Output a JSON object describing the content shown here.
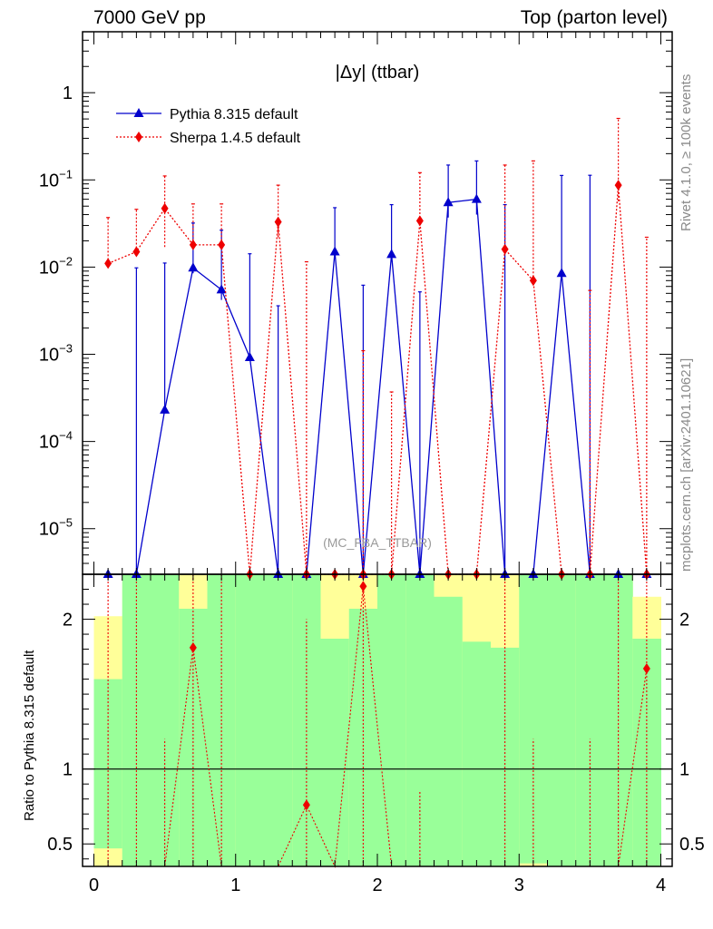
{
  "header": {
    "left": "7000 GeV pp",
    "right": "Top (parton level)"
  },
  "side_labels": {
    "rivet": "Rivet 4.1.0, ≥ 100k events",
    "mcplots": "mcplots.cern.ch [arXiv:2401.10621]"
  },
  "colors": {
    "pythia": "#0000cc",
    "sherpa": "#ee0000",
    "band_green": "#99ff99",
    "band_yellow": "#ffff99"
  },
  "chart_data": [
    {
      "type": "line",
      "panel": "main",
      "title": "|Δy| (ttbar)",
      "watermark": "(MC_FBA_TTBAR)",
      "yscale": "log",
      "xlim": [
        -0.08,
        4.08
      ],
      "ylim": [
        3e-06,
        5
      ],
      "yticks": [
        {
          "value": 1e-05,
          "base": "10",
          "exp": "−5"
        },
        {
          "value": 0.0001,
          "base": "10",
          "exp": "−4"
        },
        {
          "value": 0.001,
          "base": "10",
          "exp": "−3"
        },
        {
          "value": 0.01,
          "base": "10",
          "exp": "−2"
        },
        {
          "value": 0.1,
          "base": "10",
          "exp": "−1"
        },
        {
          "value": 1,
          "base": "1",
          "exp": ""
        }
      ],
      "legend_position": "top-left",
      "series": [
        {
          "name": "Pythia 8.315 default",
          "style": "solid",
          "marker": "triangle",
          "x": [
            0.1,
            0.3,
            0.5,
            0.7,
            0.9,
            1.1,
            1.3,
            1.5,
            1.7,
            1.9,
            2.1,
            2.3,
            2.5,
            2.7,
            2.9,
            3.1,
            3.3,
            3.5,
            3.7,
            3.9
          ],
          "y": [
            0,
            0,
            0.00023,
            0.0098,
            0.0055,
            0.00092,
            0,
            0,
            0.015,
            0,
            0.014,
            0,
            0.055,
            0.06,
            0,
            0,
            0.0085,
            0,
            0,
            0
          ],
          "yerr_up": [
            0,
            0.0098,
            0.0109,
            0.0222,
            0.021,
            0.0133,
            0.0036,
            0,
            0.033,
            0.0062,
            0.038,
            0.0052,
            0.093,
            0.105,
            0.052,
            0,
            0.104,
            0.113,
            0,
            0
          ],
          "yerr_down": [
            0,
            0,
            0,
            0.0013,
            0.0013,
            0,
            0,
            0,
            0.002,
            0,
            0.002,
            0,
            0.018,
            0.02,
            0,
            0,
            0,
            0,
            0,
            0
          ]
        },
        {
          "name": "Sherpa 1.4.5 default",
          "style": "dotted",
          "marker": "diamond",
          "x": [
            0.1,
            0.3,
            0.5,
            0.7,
            0.9,
            1.1,
            1.3,
            1.5,
            1.7,
            1.9,
            2.1,
            2.3,
            2.5,
            2.7,
            2.9,
            3.1,
            3.3,
            3.5,
            3.7,
            3.9
          ],
          "y": [
            0.011,
            0.015,
            0.047,
            0.018,
            0.018,
            0,
            0.033,
            0,
            0,
            0,
            0,
            0.034,
            0,
            0,
            0.016,
            0.007,
            0,
            0,
            0.087,
            0
          ],
          "yerr_up": [
            0.026,
            0.031,
            0.064,
            0.035,
            0.035,
            0,
            0.054,
            0.0115,
            0,
            0.0011,
            0.00037,
            0.087,
            0,
            0,
            0.132,
            0.158,
            0,
            0.0054,
            0.42,
            0.022
          ],
          "yerr_down": [
            0,
            0,
            0.03,
            0.0014,
            0.0014,
            0,
            0.011,
            0,
            0,
            0,
            0,
            0.0005,
            0,
            0,
            0.0004,
            0,
            0,
            0,
            0.03,
            0
          ]
        }
      ]
    },
    {
      "type": "line",
      "panel": "ratio",
      "ylabel": "Ratio to Pythia 8.315 default",
      "xlabel": "",
      "xlim": [
        -0.08,
        4.08
      ],
      "ylim": [
        0.35,
        2.3
      ],
      "xticks": [
        0,
        1,
        2,
        3,
        4
      ],
      "yticks": [
        0.5,
        1,
        2
      ],
      "reference_line": 1,
      "bands": {
        "edges": [
          0.0,
          0.2,
          0.4,
          0.6,
          0.8,
          1.0,
          1.2,
          1.4,
          1.6,
          1.8,
          2.0,
          2.2,
          2.4,
          2.6,
          2.8,
          3.0,
          3.2,
          3.4,
          3.6,
          3.8,
          4.0
        ],
        "yellow_lo": [
          0.35,
          0.35,
          0.35,
          0.35,
          0.35,
          0.35,
          0.35,
          0.35,
          0.35,
          0.35,
          0.35,
          0.35,
          0.35,
          0.35,
          0.35,
          0.35,
          0.35,
          0.35,
          0.35,
          0.35
        ],
        "yellow_hi": [
          2.02,
          2.3,
          2.3,
          2.3,
          2.3,
          2.3,
          2.3,
          2.3,
          2.3,
          2.3,
          2.3,
          2.3,
          2.3,
          2.3,
          2.3,
          2.15,
          2.3,
          2.3,
          2.3,
          2.15
        ],
        "green_lo": [
          0.47,
          0.35,
          0.35,
          0.35,
          0.35,
          0.35,
          0.35,
          0.35,
          0.35,
          0.35,
          0.35,
          0.35,
          0.35,
          0.35,
          0.35,
          0.37,
          0.35,
          0.35,
          0.35,
          0.35
        ],
        "green_hi": [
          1.6,
          2.3,
          2.3,
          2.07,
          2.3,
          2.3,
          2.3,
          2.3,
          1.87,
          2.07,
          2.3,
          2.3,
          2.15,
          1.85,
          1.81,
          2.3,
          2.3,
          2.3,
          2.3,
          1.87
        ]
      },
      "series": [
        {
          "name": "Sherpa 1.4.5 default",
          "x": [
            0.7,
            1.5,
            1.9,
            3.9
          ],
          "y": [
            1.81,
            0.76,
            2.22,
            1.67
          ]
        }
      ]
    }
  ]
}
